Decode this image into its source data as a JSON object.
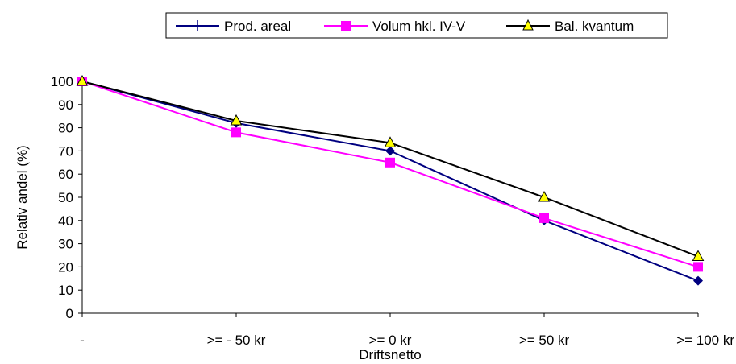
{
  "chart_data": {
    "type": "line",
    "categories": [
      "-",
      ">= - 50 kr",
      ">= 0 kr",
      ">= 50 kr",
      ">= 100 kr"
    ],
    "xlabel": "Driftsnetto",
    "ylabel": "Relativ andel (%)",
    "ylim": [
      0,
      100
    ],
    "yticks": [
      0,
      10,
      20,
      30,
      40,
      50,
      60,
      70,
      80,
      90,
      100
    ],
    "grid": false,
    "legend_position": "top",
    "series": [
      {
        "name": "Prod. areal",
        "values": [
          100,
          82,
          70,
          40,
          14
        ],
        "color": "#000080",
        "marker": "diamond"
      },
      {
        "name": "Volum hkl. IV-V",
        "values": [
          100,
          78,
          65,
          41,
          20
        ],
        "color": "#ff00ff",
        "marker": "square"
      },
      {
        "name": "Bal. kvantum",
        "values": [
          100,
          83,
          73.5,
          50,
          24.5
        ],
        "color": "#000000",
        "marker": "triangle",
        "marker_fill": "#ffff00"
      }
    ]
  }
}
